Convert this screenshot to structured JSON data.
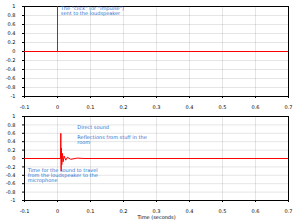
{
  "chart_data": [
    {
      "type": "line",
      "xlim": [
        -0.1,
        0.7
      ],
      "xticks": [
        -0.1,
        0,
        0.1,
        0.2,
        0.3,
        0.4,
        0.5,
        0.6,
        0.7
      ],
      "ylim": [
        -1,
        1
      ],
      "yticks": [
        -1,
        -0.8,
        -0.6,
        -0.4,
        -0.2,
        0,
        0.2,
        0.4,
        0.6,
        0.8,
        1
      ],
      "grid": true,
      "x": [
        -0.1,
        0,
        0,
        0,
        0.7
      ],
      "series": [
        {
          "color": "#ff0000",
          "values": [
            0,
            0,
            1,
            0,
            0
          ]
        }
      ],
      "annotations": [
        {
          "text": "The \"click\" (or \"impulse\") sent to the loudspeaker",
          "x": 0.01,
          "y": 0.9
        }
      ]
    },
    {
      "type": "line",
      "x_label": "Time (seconds)",
      "xlim": [
        -0.1,
        0.7
      ],
      "xticks": [
        -0.1,
        0,
        0.1,
        0.2,
        0.3,
        0.4,
        0.5,
        0.6,
        0.7
      ],
      "ylim": [
        -1,
        1
      ],
      "yticks": [
        -1,
        -0.8,
        -0.6,
        -0.4,
        -0.2,
        0,
        0.2,
        0.4,
        0.6,
        0.8,
        1
      ],
      "grid": true,
      "x": [
        -0.1,
        0.009,
        0.01,
        0.011,
        0.012,
        0.013,
        0.015,
        0.017,
        0.02,
        0.025,
        0.03,
        0.04,
        0.06,
        0.08,
        0.7
      ],
      "series": [
        {
          "color": "#ff0000",
          "values": [
            0,
            0,
            0.6,
            -0.3,
            0.25,
            -0.15,
            0.12,
            -0.08,
            0.06,
            -0.04,
            0.03,
            -0.02,
            0.01,
            0,
            0
          ]
        }
      ],
      "annotations": [
        {
          "text": "Direct sound",
          "x": 0.06,
          "y": 0.75
        },
        {
          "text": "Reflections from stuff in the room",
          "x": 0.06,
          "y": 0.45
        },
        {
          "text": "Time for the sound to travel from the loudspeaker to the microphone",
          "x": -0.09,
          "y": -0.4
        }
      ]
    }
  ]
}
